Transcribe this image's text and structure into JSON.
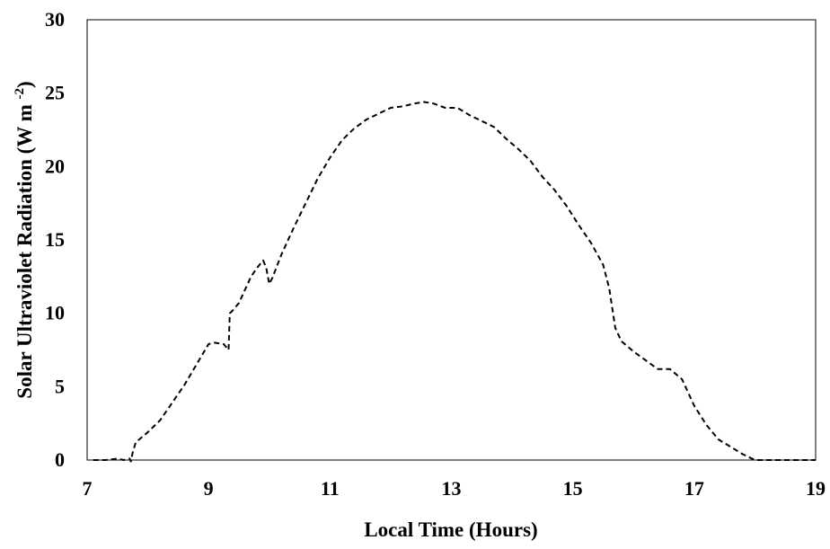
{
  "chart_data": {
    "type": "line",
    "title": "",
    "xlabel": "Local Time (Hours)",
    "ylabel": {
      "main": "Solar Ultraviolet Radiation (W m ",
      "sup": "-2",
      "end": ")"
    },
    "xlim": [
      7,
      19
    ],
    "ylim": [
      0,
      30
    ],
    "xticks": [
      7,
      9,
      11,
      13,
      15,
      17,
      19
    ],
    "yticks": [
      0,
      5,
      10,
      15,
      20,
      25,
      30
    ],
    "xtick_labels": [
      "7",
      "9",
      "11",
      "13",
      "15",
      "17",
      "19"
    ],
    "ytick_labels": [
      "0",
      "5",
      "10",
      "15",
      "20",
      "25",
      "30"
    ],
    "grid": false,
    "legend": "none",
    "series": [
      {
        "style": "dashed",
        "color": "#000000",
        "x": [
          7.1,
          7.3,
          7.5,
          7.6,
          7.7,
          7.72,
          7.75,
          7.8,
          8.0,
          8.2,
          8.4,
          8.6,
          8.8,
          9.0,
          9.1,
          9.25,
          9.33,
          9.35,
          9.4,
          9.5,
          9.6,
          9.7,
          9.8,
          9.9,
          9.95,
          10.0,
          10.05,
          10.2,
          10.4,
          10.6,
          10.8,
          11.0,
          11.2,
          11.4,
          11.6,
          11.8,
          12.0,
          12.2,
          12.4,
          12.55,
          12.7,
          12.9,
          13.1,
          13.3,
          13.5,
          13.7,
          13.9,
          14.1,
          14.3,
          14.5,
          14.7,
          14.9,
          15.1,
          15.3,
          15.5,
          15.6,
          15.7,
          15.8,
          16.0,
          16.2,
          16.4,
          16.6,
          16.8,
          17.0,
          17.2,
          17.4,
          17.6,
          17.8,
          18.0,
          18.2,
          18.5,
          18.8,
          19.0
        ],
        "y": [
          0,
          0,
          0.1,
          0,
          0.1,
          -0.1,
          0.5,
          1.2,
          1.9,
          2.7,
          3.9,
          5.1,
          6.5,
          7.9,
          8.0,
          7.9,
          7.5,
          10.0,
          10.2,
          10.7,
          11.6,
          12.5,
          13.1,
          13.6,
          13.1,
          12.0,
          12.4,
          14.0,
          15.8,
          17.5,
          19.2,
          20.6,
          21.8,
          22.6,
          23.2,
          23.6,
          24.0,
          24.1,
          24.3,
          24.4,
          24.3,
          24.0,
          24.0,
          23.5,
          23.1,
          22.7,
          21.9,
          21.2,
          20.4,
          19.3,
          18.4,
          17.3,
          16.0,
          14.8,
          13.3,
          11.7,
          9.0,
          8.1,
          7.4,
          6.8,
          6.2,
          6.2,
          5.5,
          3.7,
          2.4,
          1.4,
          0.9,
          0.4,
          0.0,
          0.0,
          0.0,
          0.0,
          0.0
        ]
      }
    ]
  }
}
